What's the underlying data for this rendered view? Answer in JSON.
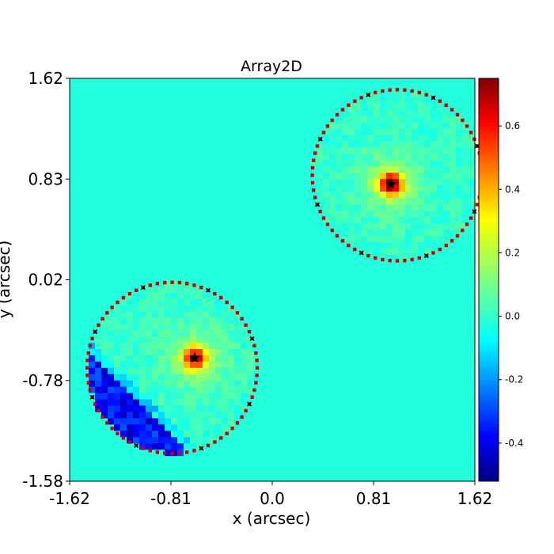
{
  "chart_data": {
    "type": "heatmap",
    "title": "Array2D",
    "xlabel": "x (arcsec)",
    "ylabel": "y (arcsec)",
    "xlim": [
      -1.62,
      1.62
    ],
    "ylim": [
      -1.58,
      1.62
    ],
    "x_ticks": [
      "-1.62",
      "-0.81",
      "0.0",
      "0.81",
      "1.62"
    ],
    "y_ticks": [
      "-1.58",
      "-0.78",
      "0.02",
      "0.83",
      "1.62"
    ],
    "colorbar": {
      "colormap": "jet",
      "vmin": -0.52,
      "vmax": 0.75,
      "ticks": [
        "0.6",
        "0.4",
        "0.2",
        "0.0",
        "-0.2",
        "-0.4"
      ]
    },
    "background_value": 0.0,
    "regions": [
      {
        "center": [
          1.0,
          0.85
        ],
        "radius": 0.68,
        "peak": [
          0.95,
          0.78
        ],
        "peak_value": 0.72
      },
      {
        "center": [
          -0.8,
          -0.68
        ],
        "radius": 0.68,
        "peak": [
          -0.62,
          -0.6
        ],
        "peak_value": 0.58,
        "negative_streak_value": -0.45
      }
    ],
    "markers": [
      {
        "type": "star",
        "x": 0.95,
        "y": 0.78
      },
      {
        "type": "star",
        "x": -0.62,
        "y": -0.6
      }
    ]
  }
}
